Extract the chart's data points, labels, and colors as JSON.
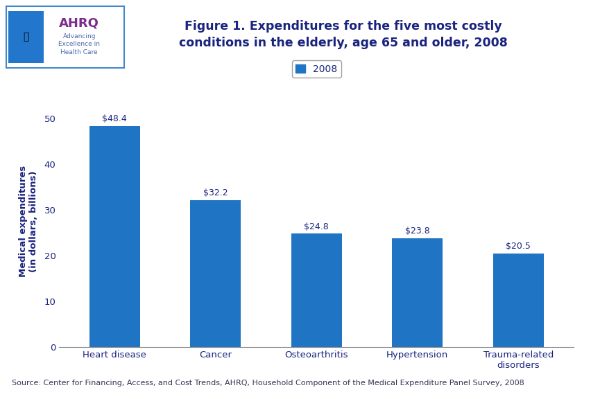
{
  "title": "Figure 1. Expenditures for the five most costly\nconditions in the elderly, age 65 and older, 2008",
  "categories": [
    "Heart disease",
    "Cancer",
    "Osteoarthritis",
    "Hypertension",
    "Trauma-related\ndisorders"
  ],
  "values": [
    48.4,
    32.2,
    24.8,
    23.8,
    20.5
  ],
  "labels": [
    "$48.4",
    "$32.2",
    "$24.8",
    "$23.8",
    "$20.5"
  ],
  "bar_color": "#1f74c4",
  "ylabel": "Medical expenditures\n(in dollars, billions)",
  "ylim": [
    0,
    55
  ],
  "yticks": [
    0,
    10,
    20,
    30,
    40,
    50
  ],
  "legend_label": "2008",
  "source_text": "Source: Center for Financing, Access, and Cost Trends, AHRQ, Household Component of the Medical Expenditure Panel Survey, 2008",
  "title_color": "#1a237e",
  "ylabel_color": "#1a237e",
  "tick_label_color": "#1a237e",
  "bar_label_color": "#1a237e",
  "background_color": "#ffffff",
  "divider_color": "#00008b",
  "title_fontsize": 12.5,
  "label_fontsize": 9,
  "ylabel_fontsize": 9.5,
  "tick_fontsize": 9.5,
  "source_fontsize": 8,
  "legend_fontsize": 10
}
